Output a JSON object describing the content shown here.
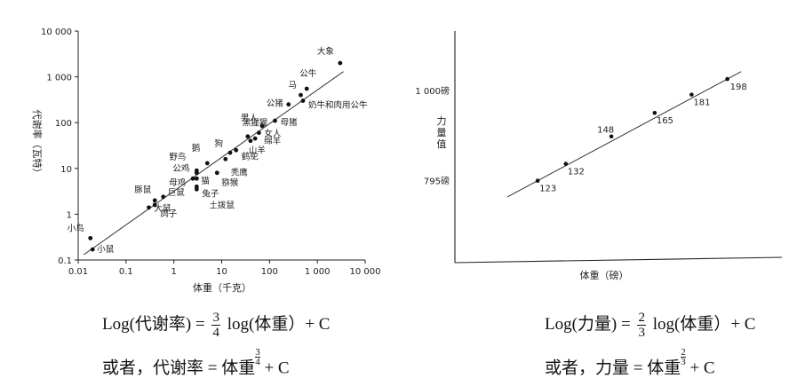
{
  "chart_data": [
    {
      "type": "scatter",
      "xlabel": "体重（千克）",
      "ylabel": "代谢率（瓦特）",
      "xscale": "log",
      "yscale": "log",
      "xlim": [
        0.01,
        10000
      ],
      "ylim": [
        0.1,
        10000
      ],
      "x_ticks": [
        "0.01",
        "0.1",
        "1",
        "10",
        "100",
        "1 000",
        "10 000"
      ],
      "y_ticks": [
        "0.1",
        "1",
        "10",
        "100",
        "1 000",
        "10 000"
      ],
      "fit_line": {
        "x": [
          0.013,
          3500
        ],
        "y": [
          0.13,
          1300
        ]
      },
      "points": [
        {
          "label": "小鸟",
          "x": 0.018,
          "y": 0.3
        },
        {
          "label": "小鼠",
          "x": 0.02,
          "y": 0.17
        },
        {
          "label": "豚鼠",
          "x": 0.4,
          "y": 2.0
        },
        {
          "label": "巨鼠",
          "x": 0.6,
          "y": 2.4
        },
        {
          "label": "大鼠",
          "x": 0.3,
          "y": 1.4
        },
        {
          "label": "鸽子",
          "x": 0.4,
          "y": 1.6
        },
        {
          "label": "野鸟",
          "x": 3.0,
          "y": 9.0
        },
        {
          "label": "公鸡",
          "x": 3.0,
          "y": 8.0
        },
        {
          "label": "母鸡",
          "x": 2.5,
          "y": 6.0
        },
        {
          "label": "鹅",
          "x": 5.0,
          "y": 13.0
        },
        {
          "label": "猫",
          "x": 3.0,
          "y": 6.0
        },
        {
          "label": "兔子",
          "x": 3.0,
          "y": 4.0
        },
        {
          "label": "土拨鼠",
          "x": 3.0,
          "y": 3.5
        },
        {
          "label": "猕猴",
          "x": 8.0,
          "y": 8.0
        },
        {
          "label": "秃鹰",
          "x": 12.0,
          "y": 16.0
        },
        {
          "label": "鹤鸵",
          "x": 20.0,
          "y": 25.0
        },
        {
          "label": "狗",
          "x": 15.0,
          "y": 22.0
        },
        {
          "label": "黑猩猩",
          "x": 35.0,
          "y": 50.0
        },
        {
          "label": "山羊",
          "x": 40.0,
          "y": 40.0
        },
        {
          "label": "绵羊",
          "x": 50.0,
          "y": 45.0
        },
        {
          "label": "女人",
          "x": 60.0,
          "y": 60.0
        },
        {
          "label": "男人",
          "x": 70.0,
          "y": 85.0
        },
        {
          "label": "母猪",
          "x": 130.0,
          "y": 110.0
        },
        {
          "label": "公猪",
          "x": 250.0,
          "y": 250.0
        },
        {
          "label": "马",
          "x": 450.0,
          "y": 400.0
        },
        {
          "label": "公牛",
          "x": 600.0,
          "y": 550.0
        },
        {
          "label": "奶牛和肉用公牛",
          "x": 500.0,
          "y": 300.0
        },
        {
          "label": "大象",
          "x": 3000.0,
          "y": 2000.0
        }
      ]
    },
    {
      "type": "scatter",
      "xlabel": "体重（磅）",
      "ylabel": "力量值",
      "y_ticks": [
        "1 000磅",
        "795磅"
      ],
      "points": [
        {
          "label": "123",
          "x": 123,
          "y": 795
        },
        {
          "label": "132",
          "x": 132,
          "y": 830
        },
        {
          "label": "148",
          "x": 148,
          "y": 890
        },
        {
          "label": "165",
          "x": 165,
          "y": 945
        },
        {
          "label": "181",
          "x": 181,
          "y": 990
        },
        {
          "label": "198",
          "x": 198,
          "y": 1030
        }
      ]
    }
  ],
  "formula_left": {
    "line1_prefix": "Log(代谢率) = ",
    "line1_num": "3",
    "line1_den": "4",
    "line1_suffix": " log(体重）+ C",
    "line2_prefix": "或者，代谢率 = 体重",
    "line2_num": "3",
    "line2_den": "4",
    "line2_suffix": " + C"
  },
  "formula_right": {
    "line1_prefix": "Log(力量) = ",
    "line1_num": "2",
    "line1_den": "3",
    "line1_suffix": " log(体重）+ C",
    "line2_prefix": "或者，力量 = 体重",
    "line2_num": "2",
    "line2_den": "3",
    "line2_suffix": " + C"
  }
}
